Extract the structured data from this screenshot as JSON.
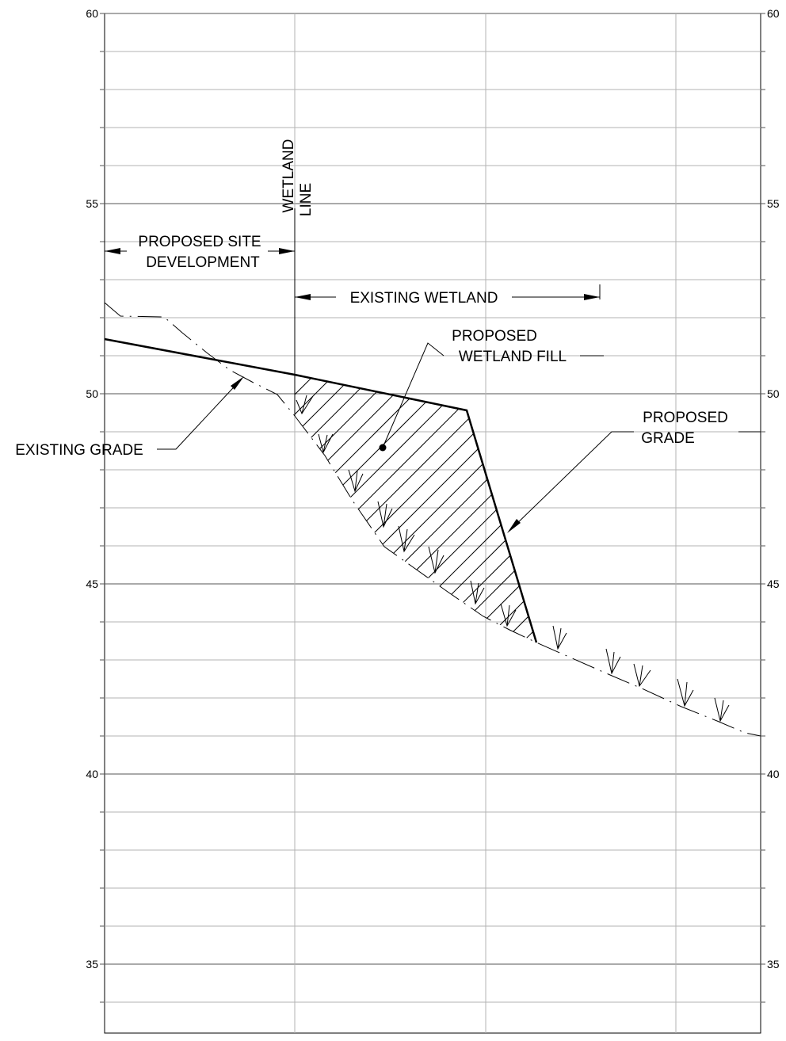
{
  "elevation_ticks": [
    "60",
    "55",
    "50",
    "45",
    "40",
    "35"
  ],
  "labels": {
    "wetland_line_1": "WETLAND",
    "wetland_line_2": "LINE",
    "proposed_site_1": "PROPOSED SITE",
    "proposed_site_2": "DEVELOPMENT",
    "existing_wetland": "EXISTING WETLAND",
    "wetland_fill_1": "PROPOSED",
    "wetland_fill_2": "WETLAND FILL",
    "proposed_grade_1": "PROPOSED",
    "proposed_grade_2": "GRADE",
    "existing_grade": "EXISTING GRADE"
  }
}
